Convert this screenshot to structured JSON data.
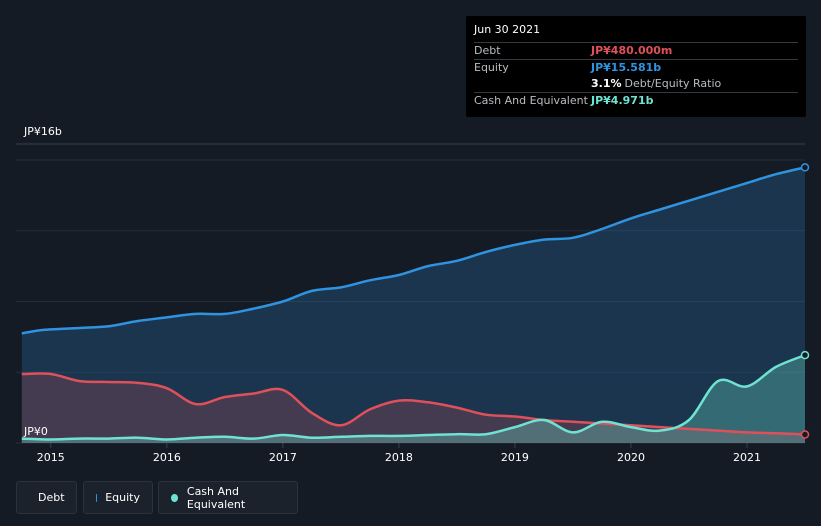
{
  "tooltip": {
    "date": "Jun 30 2021",
    "debt_label": "Debt",
    "debt_value": "JP¥480.000m",
    "equity_label": "Equity",
    "equity_value": "JP¥15.581b",
    "ratio_value": "3.1%",
    "ratio_label": "Debt/Equity Ratio",
    "cash_label": "Cash And Equivalent",
    "cash_value": "JP¥4.971b"
  },
  "legend": {
    "debt": "Debt",
    "equity": "Equity",
    "cash": "Cash And Equivalent"
  },
  "colors": {
    "debt": "#e0505a",
    "equity": "#2f93e0",
    "cash": "#6fe3d2",
    "background": "#151b24"
  },
  "chart_data": {
    "type": "area",
    "title": "",
    "ylabel": "",
    "xlabel": "",
    "y_top_label": "JP¥16b",
    "y_bottom_label": "JP¥0",
    "ylim": [
      0,
      16
    ],
    "xlim": [
      2014.7,
      2021.5
    ],
    "x_ticks": [
      "2015",
      "2016",
      "2017",
      "2018",
      "2019",
      "2020",
      "2021"
    ],
    "series": [
      {
        "name": "Equity",
        "unit": "JP¥b",
        "x": [
          2014.75,
          2014.95,
          2015.25,
          2015.5,
          2015.75,
          2016.0,
          2016.25,
          2016.5,
          2016.75,
          2017.0,
          2017.25,
          2017.5,
          2017.75,
          2018.0,
          2018.25,
          2018.5,
          2018.75,
          2019.0,
          2019.25,
          2019.5,
          2019.75,
          2020.0,
          2020.25,
          2020.5,
          2020.75,
          2021.0,
          2021.25,
          2021.5
        ],
        "values": [
          6.2,
          6.4,
          6.5,
          6.6,
          6.9,
          7.1,
          7.3,
          7.3,
          7.6,
          8.0,
          8.6,
          8.8,
          9.2,
          9.5,
          10.0,
          10.3,
          10.8,
          11.2,
          11.5,
          11.6,
          12.1,
          12.7,
          13.2,
          13.7,
          14.2,
          14.7,
          15.2,
          15.581
        ]
      },
      {
        "name": "Debt",
        "unit": "JP¥b",
        "x": [
          2014.75,
          2015.0,
          2015.25,
          2015.5,
          2015.75,
          2016.0,
          2016.25,
          2016.5,
          2016.75,
          2017.0,
          2017.25,
          2017.5,
          2017.75,
          2018.0,
          2018.25,
          2018.5,
          2018.75,
          2019.0,
          2019.25,
          2019.5,
          2019.75,
          2020.0,
          2020.25,
          2020.5,
          2020.75,
          2021.0,
          2021.25,
          2021.5
        ],
        "values": [
          3.9,
          3.9,
          3.5,
          3.45,
          3.4,
          3.1,
          2.2,
          2.6,
          2.8,
          3.0,
          1.7,
          1.0,
          1.9,
          2.4,
          2.3,
          2.0,
          1.6,
          1.5,
          1.3,
          1.2,
          1.1,
          1.0,
          0.9,
          0.8,
          0.7,
          0.6,
          0.55,
          0.48
        ]
      },
      {
        "name": "Cash And Equivalent",
        "unit": "JP¥b",
        "x": [
          2014.75,
          2015.0,
          2015.25,
          2015.5,
          2015.75,
          2016.0,
          2016.25,
          2016.5,
          2016.75,
          2017.0,
          2017.25,
          2017.5,
          2017.75,
          2018.0,
          2018.25,
          2018.5,
          2018.75,
          2019.0,
          2019.25,
          2019.5,
          2019.75,
          2020.0,
          2020.25,
          2020.5,
          2020.75,
          2021.0,
          2021.25,
          2021.5
        ],
        "values": [
          0.25,
          0.2,
          0.25,
          0.25,
          0.3,
          0.2,
          0.3,
          0.35,
          0.25,
          0.45,
          0.3,
          0.35,
          0.4,
          0.4,
          0.45,
          0.5,
          0.5,
          0.9,
          1.3,
          0.6,
          1.2,
          0.9,
          0.7,
          1.3,
          3.5,
          3.2,
          4.3,
          4.971
        ]
      }
    ]
  }
}
